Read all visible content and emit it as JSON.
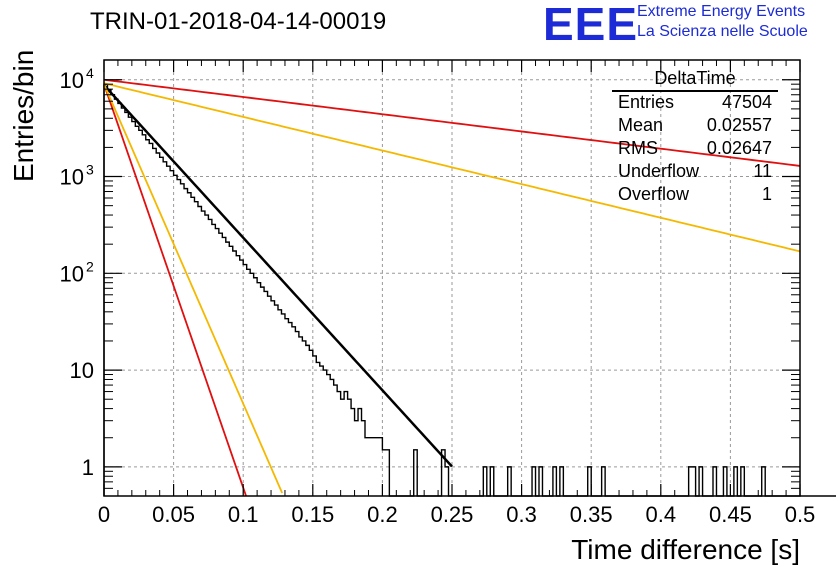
{
  "title": "TRIN-01-2018-04-14-00019",
  "logo": {
    "mark": "EEE",
    "line1": "Extreme Energy Events",
    "line2": "La Scienza nelle Scuole",
    "color": "#1c2bd6"
  },
  "stats": {
    "title": "DeltaTime",
    "rows": [
      {
        "key": "Entries",
        "value": "47504"
      },
      {
        "key": "Mean",
        "value": "0.02557"
      },
      {
        "key": "RMS",
        "value": "0.02647"
      },
      {
        "key": "Underflow",
        "value": "11"
      },
      {
        "key": "Overflow",
        "value": "1"
      }
    ]
  },
  "chart_data": {
    "type": "line",
    "title": "TRIN-01-2018-04-14-00019",
    "xlabel": "Time difference [s]",
    "ylabel": "Entries/bin",
    "xlim": [
      0,
      0.5
    ],
    "ylim": [
      0.5,
      16000
    ],
    "yscale": "log",
    "grid": true,
    "x_ticks": [
      {
        "value": 0,
        "label": "0"
      },
      {
        "value": 0.05,
        "label": "0.05"
      },
      {
        "value": 0.1,
        "label": "0.1"
      },
      {
        "value": 0.15,
        "label": "0.15"
      },
      {
        "value": 0.2,
        "label": "0.2"
      },
      {
        "value": 0.25,
        "label": "0.25"
      },
      {
        "value": 0.3,
        "label": "0.3"
      },
      {
        "value": 0.35,
        "label": "0.35"
      },
      {
        "value": 0.4,
        "label": "0.4"
      },
      {
        "value": 0.45,
        "label": "0.45"
      },
      {
        "value": 0.5,
        "label": "0.5"
      }
    ],
    "y_ticks": [
      {
        "value": 1,
        "label": "1"
      },
      {
        "value": 10,
        "label": "10"
      },
      {
        "value": 100,
        "label": "10",
        "sup": "2"
      },
      {
        "value": 1000,
        "label": "10",
        "sup": "3"
      },
      {
        "value": 10000,
        "label": "10",
        "sup": "4"
      }
    ],
    "histogram": {
      "bin_width": 0.0025,
      "color": "#000000",
      "values": [
        9000,
        7800,
        7000,
        6300,
        5700,
        5100,
        4600,
        4100,
        3700,
        3300,
        3000,
        2700,
        2400,
        2200,
        1950,
        1750,
        1580,
        1420,
        1280,
        1150,
        1030,
        930,
        840,
        750,
        680,
        610,
        550,
        490,
        440,
        400,
        360,
        320,
        290,
        260,
        235,
        210,
        190,
        170,
        152,
        137,
        123,
        110,
        100,
        90,
        80,
        72,
        65,
        58,
        52,
        47,
        42,
        38,
        34,
        31,
        28,
        25,
        22,
        20,
        18,
        16,
        14,
        12,
        11,
        10,
        9,
        8,
        7,
        6,
        5,
        6,
        5,
        4,
        3,
        4,
        3,
        2,
        2,
        2,
        2,
        1,
        1,
        0.5,
        0.5,
        0.5,
        0.5,
        0.5,
        0,
        0,
        0,
        0,
        0,
        0,
        0,
        0,
        0,
        0,
        0,
        0,
        0,
        0,
        0,
        0,
        0,
        0,
        0,
        0,
        0,
        0,
        0,
        0,
        0,
        0,
        0,
        0,
        0,
        0,
        0,
        0,
        0,
        0,
        0,
        0,
        0,
        0,
        0,
        0,
        0,
        0,
        0,
        0,
        0,
        0,
        0,
        0,
        0,
        0,
        0,
        0,
        0,
        0,
        0,
        0,
        0,
        0,
        0,
        0,
        0,
        0,
        0,
        0,
        0,
        0,
        0,
        0,
        0,
        0,
        0,
        0,
        0,
        0,
        0,
        0,
        0,
        0,
        0,
        0,
        0,
        0,
        0,
        0,
        0,
        0,
        0,
        0,
        0,
        0,
        0,
        0,
        0,
        0,
        0,
        0,
        0,
        0,
        0,
        0,
        0,
        0,
        0,
        0,
        0,
        0,
        0,
        0,
        0,
        0,
        0,
        0,
        0,
        0,
        0,
        0,
        0,
        0,
        0,
        0,
        0,
        0,
        0,
        0,
        0,
        0,
        0,
        0,
        0,
        0,
        0,
        0
      ],
      "tail_bins": [
        {
          "x": 0.1975,
          "value": 2
        },
        {
          "x": 0.2,
          "value": 1.5
        },
        {
          "x": 0.2025,
          "value": 1.5
        },
        {
          "x": 0.2225,
          "value": 1.5
        },
        {
          "x": 0.2425,
          "value": 1.5
        },
        {
          "x": 0.245,
          "value": 1
        },
        {
          "x": 0.2725,
          "value": 1
        },
        {
          "x": 0.2775,
          "value": 1
        },
        {
          "x": 0.29,
          "value": 1
        },
        {
          "x": 0.3075,
          "value": 1
        },
        {
          "x": 0.3125,
          "value": 1
        },
        {
          "x": 0.3225,
          "value": 1
        },
        {
          "x": 0.3275,
          "value": 1
        },
        {
          "x": 0.3475,
          "value": 1
        },
        {
          "x": 0.3575,
          "value": 1
        },
        {
          "x": 0.42,
          "value": 1
        },
        {
          "x": 0.4225,
          "value": 1
        },
        {
          "x": 0.4275,
          "value": 1
        },
        {
          "x": 0.4375,
          "value": 1
        },
        {
          "x": 0.445,
          "value": 1
        },
        {
          "x": 0.4525,
          "value": 1
        },
        {
          "x": 0.4575,
          "value": 1
        },
        {
          "x": 0.4725,
          "value": 1
        }
      ]
    },
    "curves": [
      {
        "color": "#000000",
        "width": 2.5,
        "y0": 8800,
        "slope": -36.3,
        "x_end": 0.25
      },
      {
        "color": "#e01010",
        "width": 1.8,
        "y0": 10000,
        "slope": -4.1,
        "x_end": 0.5
      },
      {
        "color": "#f5b800",
        "width": 1.8,
        "y0": 9200,
        "slope": -8.0,
        "x_end": 0.5
      },
      {
        "color": "#e01010",
        "width": 1.8,
        "y0": 9000,
        "slope": -96,
        "x_end": 0.102
      },
      {
        "color": "#f5b800",
        "width": 1.8,
        "y0": 9000,
        "slope": -76,
        "x_end": 0.128
      }
    ]
  }
}
